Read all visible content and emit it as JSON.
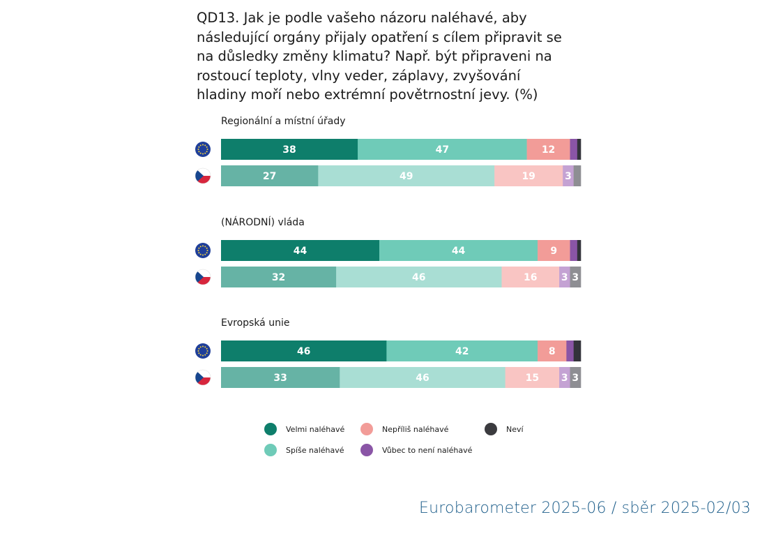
{
  "title": "QD13. Jak je podle vašeho názoru naléhavé, aby následující orgány přijaly opatření s cílem připravit se na důsledky změny klimatu? Např. být připraveni na rostoucí teploty, vlny veder, záplavy, zvyšování hladiny moří nebo extrémní povětrnostní jevy. (%)",
  "source": "Eurobarometer 2025-06 / sběr 2025-02/03",
  "chart_data": {
    "type": "bar",
    "orientation": "horizontal",
    "stacked": true,
    "unit": "%",
    "xlim": [
      0,
      100
    ],
    "categories": [
      {
        "name": "Regionální a místní úřady"
      },
      {
        "name": "(NÁRODNÍ) vláda"
      },
      {
        "name": "Evropská unie"
      }
    ],
    "rows": [
      {
        "name": "EU",
        "icon": "eu-flag-icon"
      },
      {
        "name": "CZ",
        "icon": "czech-flag-icon"
      }
    ],
    "series": [
      {
        "name": "Velmi naléhavé",
        "colors": {
          "EU": "#0e7e6b",
          "CZ": "#66b3a5"
        },
        "legend_color": "#0e7e6b",
        "values": {
          "EU": [
            38,
            44,
            46
          ],
          "CZ": [
            27,
            32,
            33
          ]
        }
      },
      {
        "name": "Spíše naléhavé",
        "colors": {
          "EU": "#6fcbb8",
          "CZ": "#a9ded4"
        },
        "legend_color": "#6fcbb8",
        "values": {
          "EU": [
            47,
            44,
            42
          ],
          "CZ": [
            49,
            46,
            46
          ]
        }
      },
      {
        "name": "Nepříliš naléhavé",
        "colors": {
          "EU": "#f29c98",
          "CZ": "#f9c5c3"
        },
        "legend_color": "#f29c98",
        "values": {
          "EU": [
            12,
            9,
            8
          ],
          "CZ": [
            19,
            16,
            15
          ]
        }
      },
      {
        "name": "Vůbec to není naléhavé",
        "colors": {
          "EU": "#8a55a6",
          "CZ": "#c4a2d3"
        },
        "legend_color": "#8a55a6",
        "values": {
          "EU": [
            2,
            2,
            2
          ],
          "CZ": [
            3,
            3,
            3
          ]
        }
      },
      {
        "name": "Neví",
        "colors": {
          "EU": "#33333b",
          "CZ": "#8e8e93"
        },
        "legend_color": "#3b3b3f",
        "values": {
          "EU": [
            1,
            1,
            2
          ],
          "CZ": [
            2,
            3,
            3
          ]
        }
      }
    ],
    "labels": {
      "EU": [
        [
          "38",
          "47",
          "12",
          "",
          ""
        ],
        [
          "44",
          "44",
          "9",
          "",
          ""
        ],
        [
          "46",
          "42",
          "8",
          "",
          ""
        ]
      ],
      "CZ": [
        [
          "27",
          "49",
          "19",
          "3",
          ""
        ],
        [
          "32",
          "46",
          "16",
          "3",
          "3"
        ],
        [
          "33",
          "46",
          "15",
          "3",
          "3"
        ]
      ]
    },
    "legend": [
      {
        "name": "Velmi naléhavé",
        "color": "#0e7e6b"
      },
      {
        "name": "Nepříliš naléhavé",
        "color": "#f29c98"
      },
      {
        "name": "Neví",
        "color": "#3b3b3f"
      },
      {
        "name": "Spíše naléhavé",
        "color": "#6fcbb8"
      },
      {
        "name": "Vůbec to není naléhavé",
        "color": "#8a55a6"
      }
    ],
    "legend_layout": "two rows below chart"
  }
}
